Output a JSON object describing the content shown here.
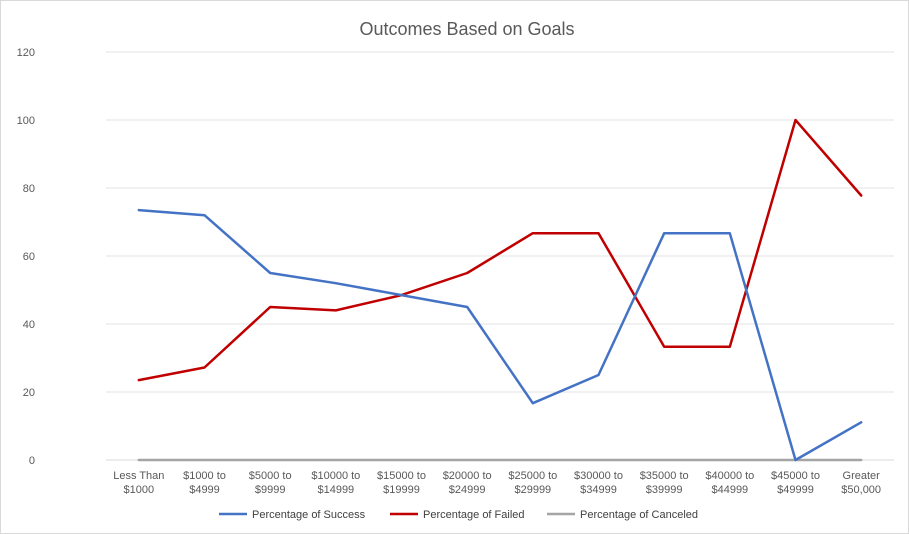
{
  "chart_data": {
    "type": "line",
    "title": "Outcomes Based on Goals",
    "xlabel": "",
    "ylabel": "",
    "ylim": [
      0,
      120
    ],
    "yticks": [
      0,
      20,
      40,
      60,
      80,
      100,
      120
    ],
    "grid": true,
    "legend_position": "bottom",
    "categories": [
      [
        "Less Than",
        "$1000"
      ],
      [
        "$1000 to",
        "$4999"
      ],
      [
        "$5000 to",
        "$9999"
      ],
      [
        "$10000 to",
        "$14999"
      ],
      [
        "$15000 to",
        "$19999"
      ],
      [
        "$20000 to",
        "$24999"
      ],
      [
        "$25000 to",
        "$29999"
      ],
      [
        "$30000 to",
        "$34999"
      ],
      [
        "$35000 to",
        "$39999"
      ],
      [
        "$40000 to",
        "$44999"
      ],
      [
        "$45000 to",
        "$49999"
      ],
      [
        "Greater",
        "$50,000"
      ]
    ],
    "series": [
      {
        "name": "Percentage of Success",
        "color": "#4472c4",
        "values": [
          73.5,
          72,
          55,
          52,
          48.5,
          45,
          16.7,
          25,
          66.7,
          66.7,
          0,
          11.1
        ]
      },
      {
        "name": "Percentage of Failed",
        "color": "#c00000",
        "values": [
          23.5,
          27.2,
          45,
          44,
          48.5,
          55,
          66.7,
          66.7,
          33.3,
          33.3,
          100,
          77.8
        ]
      },
      {
        "name": "Percentage of Canceled",
        "color": "#a5a5a5",
        "values": [
          0,
          0,
          0,
          0,
          0,
          0,
          0,
          0,
          0,
          0,
          0,
          0
        ]
      }
    ]
  }
}
